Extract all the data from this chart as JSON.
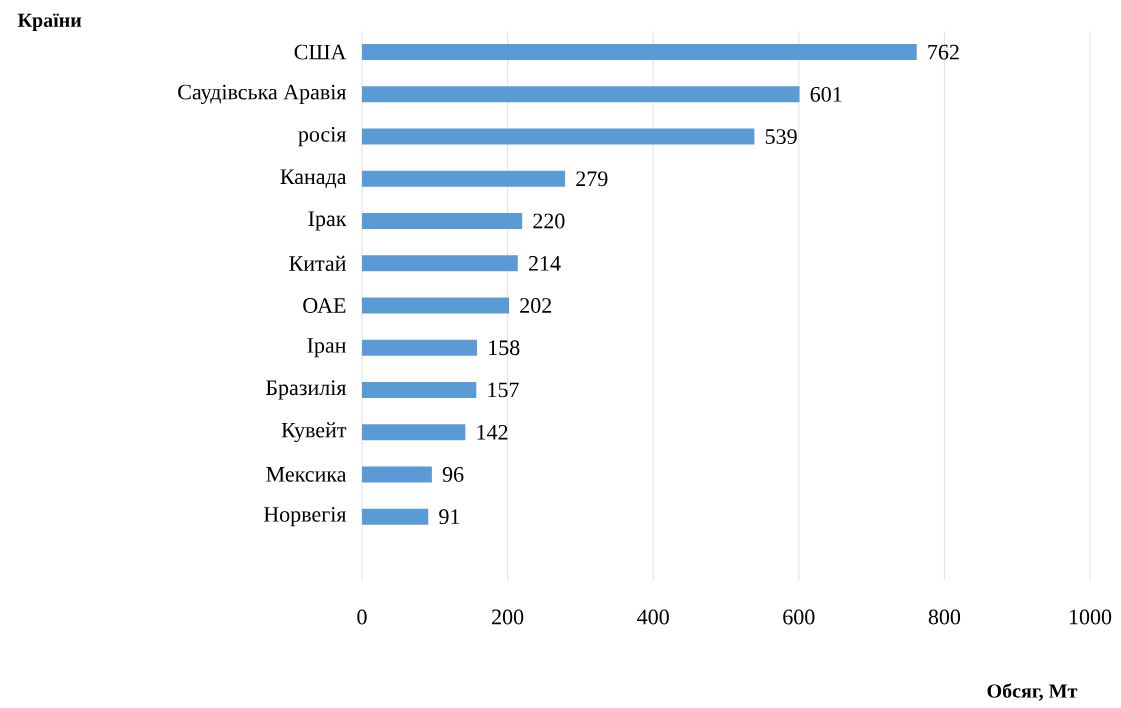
{
  "chart_data": {
    "type": "bar",
    "orientation": "horizontal",
    "xlabel": "Обсяг, Мт",
    "ylabel": "Країни",
    "categories": [
      "США",
      "Саудівська Аравія",
      "росія",
      "Канада",
      "Ірак",
      "Китай",
      "ОАЕ",
      "Іран",
      "Бразилія",
      "Кувейт",
      "Мексика",
      "Норвегія"
    ],
    "values": [
      762,
      601,
      539,
      279,
      220,
      214,
      202,
      158,
      157,
      142,
      96,
      91
    ],
    "color": "#5b9bd5",
    "xlim": [
      0,
      1000
    ],
    "xticks": [
      0,
      200,
      400,
      600,
      800,
      1000
    ],
    "grid": "x",
    "data_labels": true
  }
}
